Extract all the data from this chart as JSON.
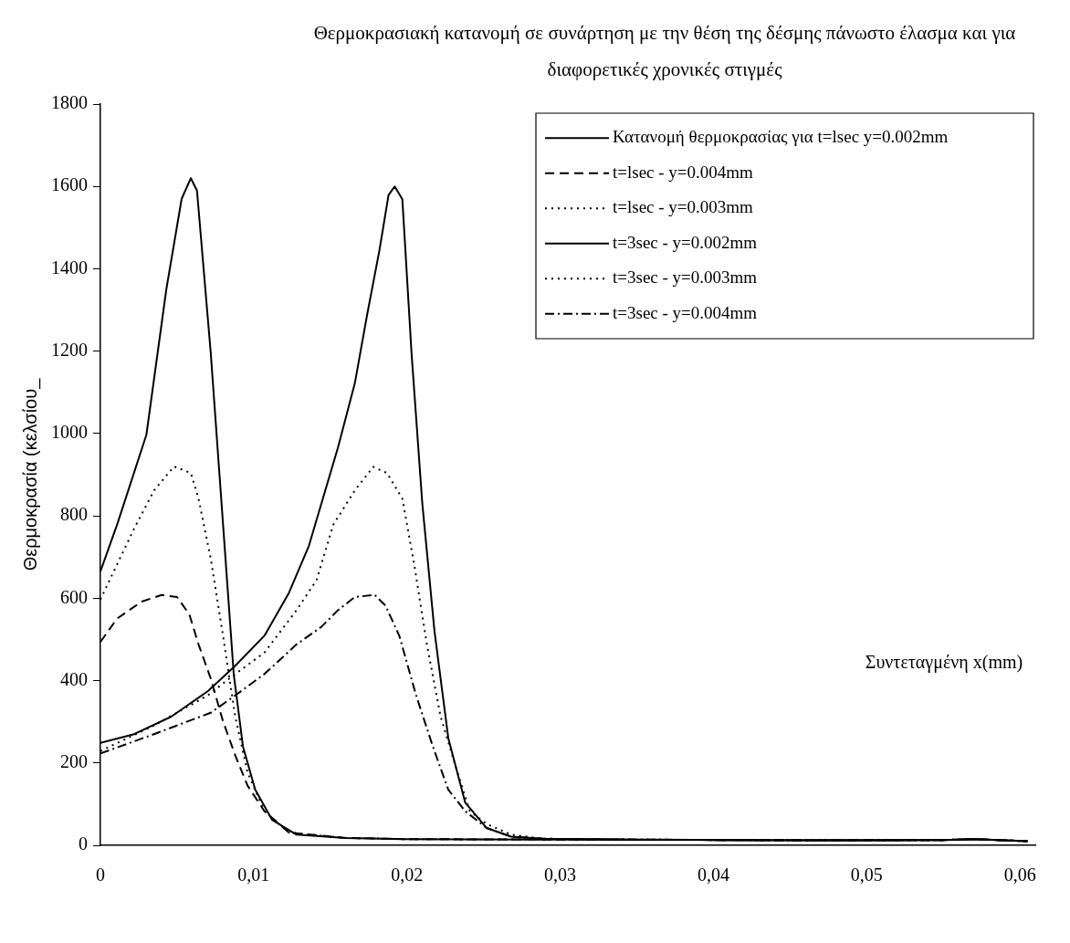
{
  "chart_data": {
    "type": "line",
    "title": "Θερμοκρασιακή κατανομή σε συνάρτηση με την θέση της δέσμης πάνωστο έλασμα και για διαφορετικές χρονικές στιγμές",
    "xlabel": "Συντεταγμένη x(mm)",
    "ylabel": "Θερμοκρασία (κελσίου_",
    "xlim": [
      0,
      0.061
    ],
    "ylim": [
      0,
      1800
    ],
    "xticks": [
      0,
      {
        "value": 0.01,
        "label": "0,01"
      },
      {
        "value": 0.02,
        "label": "0,02"
      },
      {
        "value": 0.03,
        "label": "0,03"
      },
      {
        "value": 0.04,
        "label": "0,04"
      },
      {
        "value": 0.05,
        "label": "0,05"
      },
      {
        "value": 0.06,
        "label": "0,06"
      }
    ],
    "yticks": [
      0,
      200,
      400,
      600,
      800,
      1000,
      1200,
      1400,
      1600,
      1800
    ],
    "grid": false,
    "legend": "top right",
    "marker": "none",
    "series": [
      {
        "name": "Κατανομή θερμοκρασίας για t=lsec y=0.002mm",
        "color": "#000000",
        "line_style": "solid",
        "x": [
          0,
          0.0011,
          0.003,
          0.0043,
          0.0053,
          0.0059,
          0.0063,
          0.0072,
          0.008,
          0.0087,
          0.0093,
          0.0101,
          0.0112,
          0.0128,
          0.016,
          0.02,
          0.03,
          0.04,
          0.05,
          0.055,
          0.057,
          0.0605
        ],
        "values": [
          665,
          780,
          997,
          1350,
          1570,
          1620,
          1590,
          1195,
          780,
          415,
          240,
          135,
          62,
          26,
          18,
          15,
          14,
          13,
          12,
          13,
          15,
          10
        ]
      },
      {
        "name": "t=lsec - y=0.004mm",
        "color": "#000000",
        "line_style": "dashed",
        "x": [
          0,
          0.0011,
          0.0027,
          0.004,
          0.005,
          0.0058,
          0.0064,
          0.0072,
          0.008,
          0.0088,
          0.0096,
          0.0107,
          0.0123,
          0.016,
          0.02,
          0.03,
          0.04,
          0.05,
          0.055,
          0.057,
          0.0605
        ],
        "values": [
          494,
          551,
          592,
          608,
          603,
          561,
          488,
          405,
          301,
          218,
          145,
          83,
          31,
          18,
          15,
          14,
          13,
          12,
          13,
          15,
          10
        ]
      },
      {
        "name": "t=lsec - y=0.003mm",
        "color": "#000000",
        "line_style": "dotted",
        "x": [
          0,
          0.0022,
          0.0035,
          0.0048,
          0.0059,
          0.0064,
          0.0072,
          0.008,
          0.0088,
          0.0096,
          0.0107,
          0.0123,
          0.016,
          0.02,
          0.03,
          0.04,
          0.05,
          0.055,
          0.057,
          0.0605
        ],
        "values": [
          597,
          769,
          862,
          920,
          904,
          842,
          696,
          509,
          312,
          177,
          83,
          31,
          18,
          15,
          14,
          13,
          12,
          13,
          15,
          10
        ]
      },
      {
        "name": "t=3sec - y=0.002mm",
        "color": "#000000",
        "line_style": "solid",
        "x": [
          0,
          0.0022,
          0.0046,
          0.007,
          0.0088,
          0.0107,
          0.0123,
          0.0136,
          0.0155,
          0.0166,
          0.0174,
          0.0182,
          0.0188,
          0.0192,
          0.0197,
          0.0203,
          0.021,
          0.0218,
          0.0227,
          0.0238,
          0.0252,
          0.0268,
          0.0289,
          0.035,
          0.045,
          0.055,
          0.057,
          0.0605
        ],
        "values": [
          249,
          270,
          312,
          374,
          436,
          509,
          613,
          727,
          966,
          1122,
          1288,
          1444,
          1579,
          1600,
          1569,
          1195,
          831,
          519,
          260,
          104,
          42,
          21,
          16,
          14,
          12,
          13,
          15,
          10
        ]
      },
      {
        "name": "t=3sec - y=0.003mm",
        "color": "#000000",
        "line_style": "dotted",
        "x": [
          0,
          0.0035,
          0.007,
          0.0088,
          0.0107,
          0.0128,
          0.0141,
          0.0152,
          0.0166,
          0.0178,
          0.0187,
          0.0197,
          0.0205,
          0.0213,
          0.0222,
          0.0233,
          0.0241,
          0.0252,
          0.0268,
          0.0289,
          0.035,
          0.045,
          0.055,
          0.057,
          0.0605
        ],
        "values": [
          229,
          291,
          364,
          416,
          468,
          571,
          644,
          779,
          862,
          919,
          904,
          842,
          676,
          488,
          312,
          177,
          83,
          52,
          26,
          16,
          14,
          12,
          13,
          15,
          10
        ]
      },
      {
        "name": "t=3sec - y=0.004mm",
        "color": "#000000",
        "line_style": "dashdot",
        "x": [
          0,
          0.0035,
          0.0072,
          0.0088,
          0.0107,
          0.0128,
          0.0144,
          0.0155,
          0.0166,
          0.0179,
          0.0186,
          0.0195,
          0.0206,
          0.0217,
          0.0227,
          0.0238,
          0.0252,
          0.0268,
          0.0289,
          0.035,
          0.045,
          0.055,
          0.057,
          0.0605
        ],
        "values": [
          223,
          270,
          322,
          364,
          416,
          488,
          530,
          571,
          603,
          608,
          582,
          509,
          364,
          239,
          135,
          83,
          42,
          21,
          16,
          14,
          12,
          13,
          15,
          10
        ]
      }
    ]
  }
}
